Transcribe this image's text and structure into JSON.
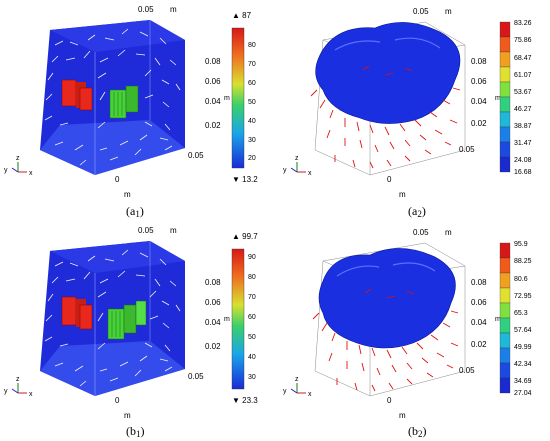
{
  "colors": {
    "box_blue": "#1f2bd8",
    "floor_blue": "#3a52f0",
    "red_block": "#e8281c",
    "green_block": "#48d23a",
    "arrow_white": "#f4f4f4",
    "arrow_red": "#e01010"
  },
  "panels": [
    {
      "id": "a1",
      "caption": {
        "main": "(a",
        "sub": "1",
        "close": ")"
      },
      "axis_ticks_top": "0.05",
      "axis_ticks_right": [
        "0.08",
        "0.06",
        "0.04",
        "0.02"
      ],
      "axis_ticks_front": "0.05",
      "axis_tick_zero": "0",
      "unit_top": "m",
      "unit_right": "m",
      "unit_bottom": "m",
      "triad": {
        "x": "x",
        "y": "y",
        "z": "z"
      },
      "colorbar": {
        "max": "87",
        "min": "13.2",
        "ticks": [
          "80",
          "70",
          "60",
          "50",
          "40",
          "30",
          "20"
        ]
      }
    },
    {
      "id": "a2",
      "caption": {
        "main": "(a",
        "sub": "2",
        "close": ")"
      },
      "axis_ticks_top": "0.05",
      "axis_ticks_right": [
        "0.08",
        "0.06",
        "0.04",
        "0.02"
      ],
      "axis_ticks_front": "0.05",
      "axis_tick_zero": "0",
      "unit_top": "m",
      "unit_right": "m",
      "unit_bottom": "m",
      "triad": {
        "x": "x",
        "y": "y",
        "z": "z"
      },
      "colorbar": {
        "ticks": [
          "83.26",
          "75.86",
          "68.47",
          "61.07",
          "53.67",
          "46.27",
          "38.87",
          "31.47",
          "24.08",
          "16.68"
        ]
      }
    },
    {
      "id": "b1",
      "caption": {
        "main": "(b",
        "sub": "1",
        "close": ")"
      },
      "axis_ticks_top": "0.05",
      "axis_ticks_right": [
        "0.08",
        "0.06",
        "0.04",
        "0.02"
      ],
      "axis_ticks_front": "0.05",
      "axis_tick_zero": "0",
      "unit_top": "m",
      "unit_right": "m",
      "unit_bottom": "m",
      "triad": {
        "x": "x",
        "y": "y",
        "z": "z"
      },
      "colorbar": {
        "max": "99.7",
        "min": "23.3",
        "ticks": [
          "90",
          "80",
          "70",
          "60",
          "50",
          "40",
          "30"
        ]
      }
    },
    {
      "id": "b2",
      "caption": {
        "main": "(b",
        "sub": "2",
        "close": ")"
      },
      "axis_ticks_top": "0.05",
      "axis_ticks_right": [
        "0.08",
        "0.06",
        "0.04",
        "0.02"
      ],
      "axis_ticks_front": "0.05",
      "axis_tick_zero": "0",
      "unit_top": "m",
      "unit_right": "m",
      "unit_bottom": "m",
      "triad": {
        "x": "x",
        "y": "y",
        "z": "z"
      },
      "colorbar": {
        "ticks": [
          "95.9",
          "88.25",
          "80.6",
          "72.95",
          "65.3",
          "57.64",
          "49.99",
          "42.34",
          "34.69",
          "27.04"
        ]
      }
    }
  ]
}
